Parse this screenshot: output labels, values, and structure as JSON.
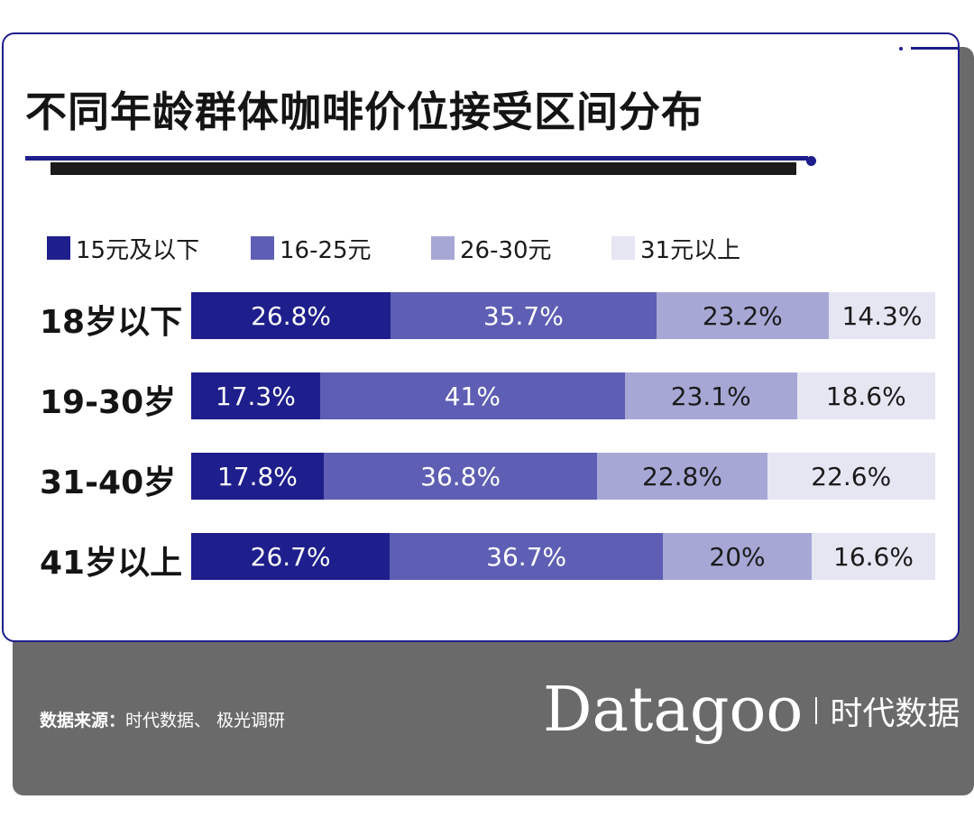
{
  "title": "不同年龄群体咖啡价位接受区间分布",
  "legend": [
    {
      "label": "15元及以下",
      "color": "#1e1e8c"
    },
    {
      "label": "16-25元",
      "color": "#5e5eb4"
    },
    {
      "label": "26-30元",
      "color": "#a7a7d6"
    },
    {
      "label": "31元以上",
      "color": "#e6e6f3"
    }
  ],
  "chart_data": {
    "type": "bar",
    "stacked": true,
    "orientation": "horizontal",
    "title": "不同年龄群体咖啡价位接受区间分布",
    "categories": [
      "18岁以下",
      "19-30岁",
      "31-40岁",
      "41岁以上"
    ],
    "series": [
      {
        "name": "15元及以下",
        "color": "#1e1e8c",
        "values": [
          26.8,
          17.3,
          17.8,
          26.7
        ],
        "labels": [
          "26.8%",
          "17.3%",
          "17.8%",
          "26.7%"
        ]
      },
      {
        "name": "16-25元",
        "color": "#5e5eb4",
        "values": [
          35.7,
          41,
          36.8,
          36.7
        ],
        "labels": [
          "35.7%",
          "41%",
          "36.8%",
          "36.7%"
        ]
      },
      {
        "name": "26-30元",
        "color": "#a7a7d6",
        "values": [
          23.2,
          23.1,
          22.8,
          20
        ],
        "labels": [
          "23.2%",
          "23.1%",
          "22.8%",
          "20%"
        ]
      },
      {
        "name": "31元以上",
        "color": "#e6e6f3",
        "values": [
          14.3,
          18.6,
          22.6,
          16.6
        ],
        "labels": [
          "14.3%",
          "18.6%",
          "22.6%",
          "16.6%"
        ]
      }
    ],
    "legend_position": "top",
    "grid": false
  },
  "footer": {
    "source_label": "数据来源：",
    "source_text": "时代数据、 极光调研",
    "brand_name": "Datagoo",
    "brand_cn": "时代数据"
  }
}
